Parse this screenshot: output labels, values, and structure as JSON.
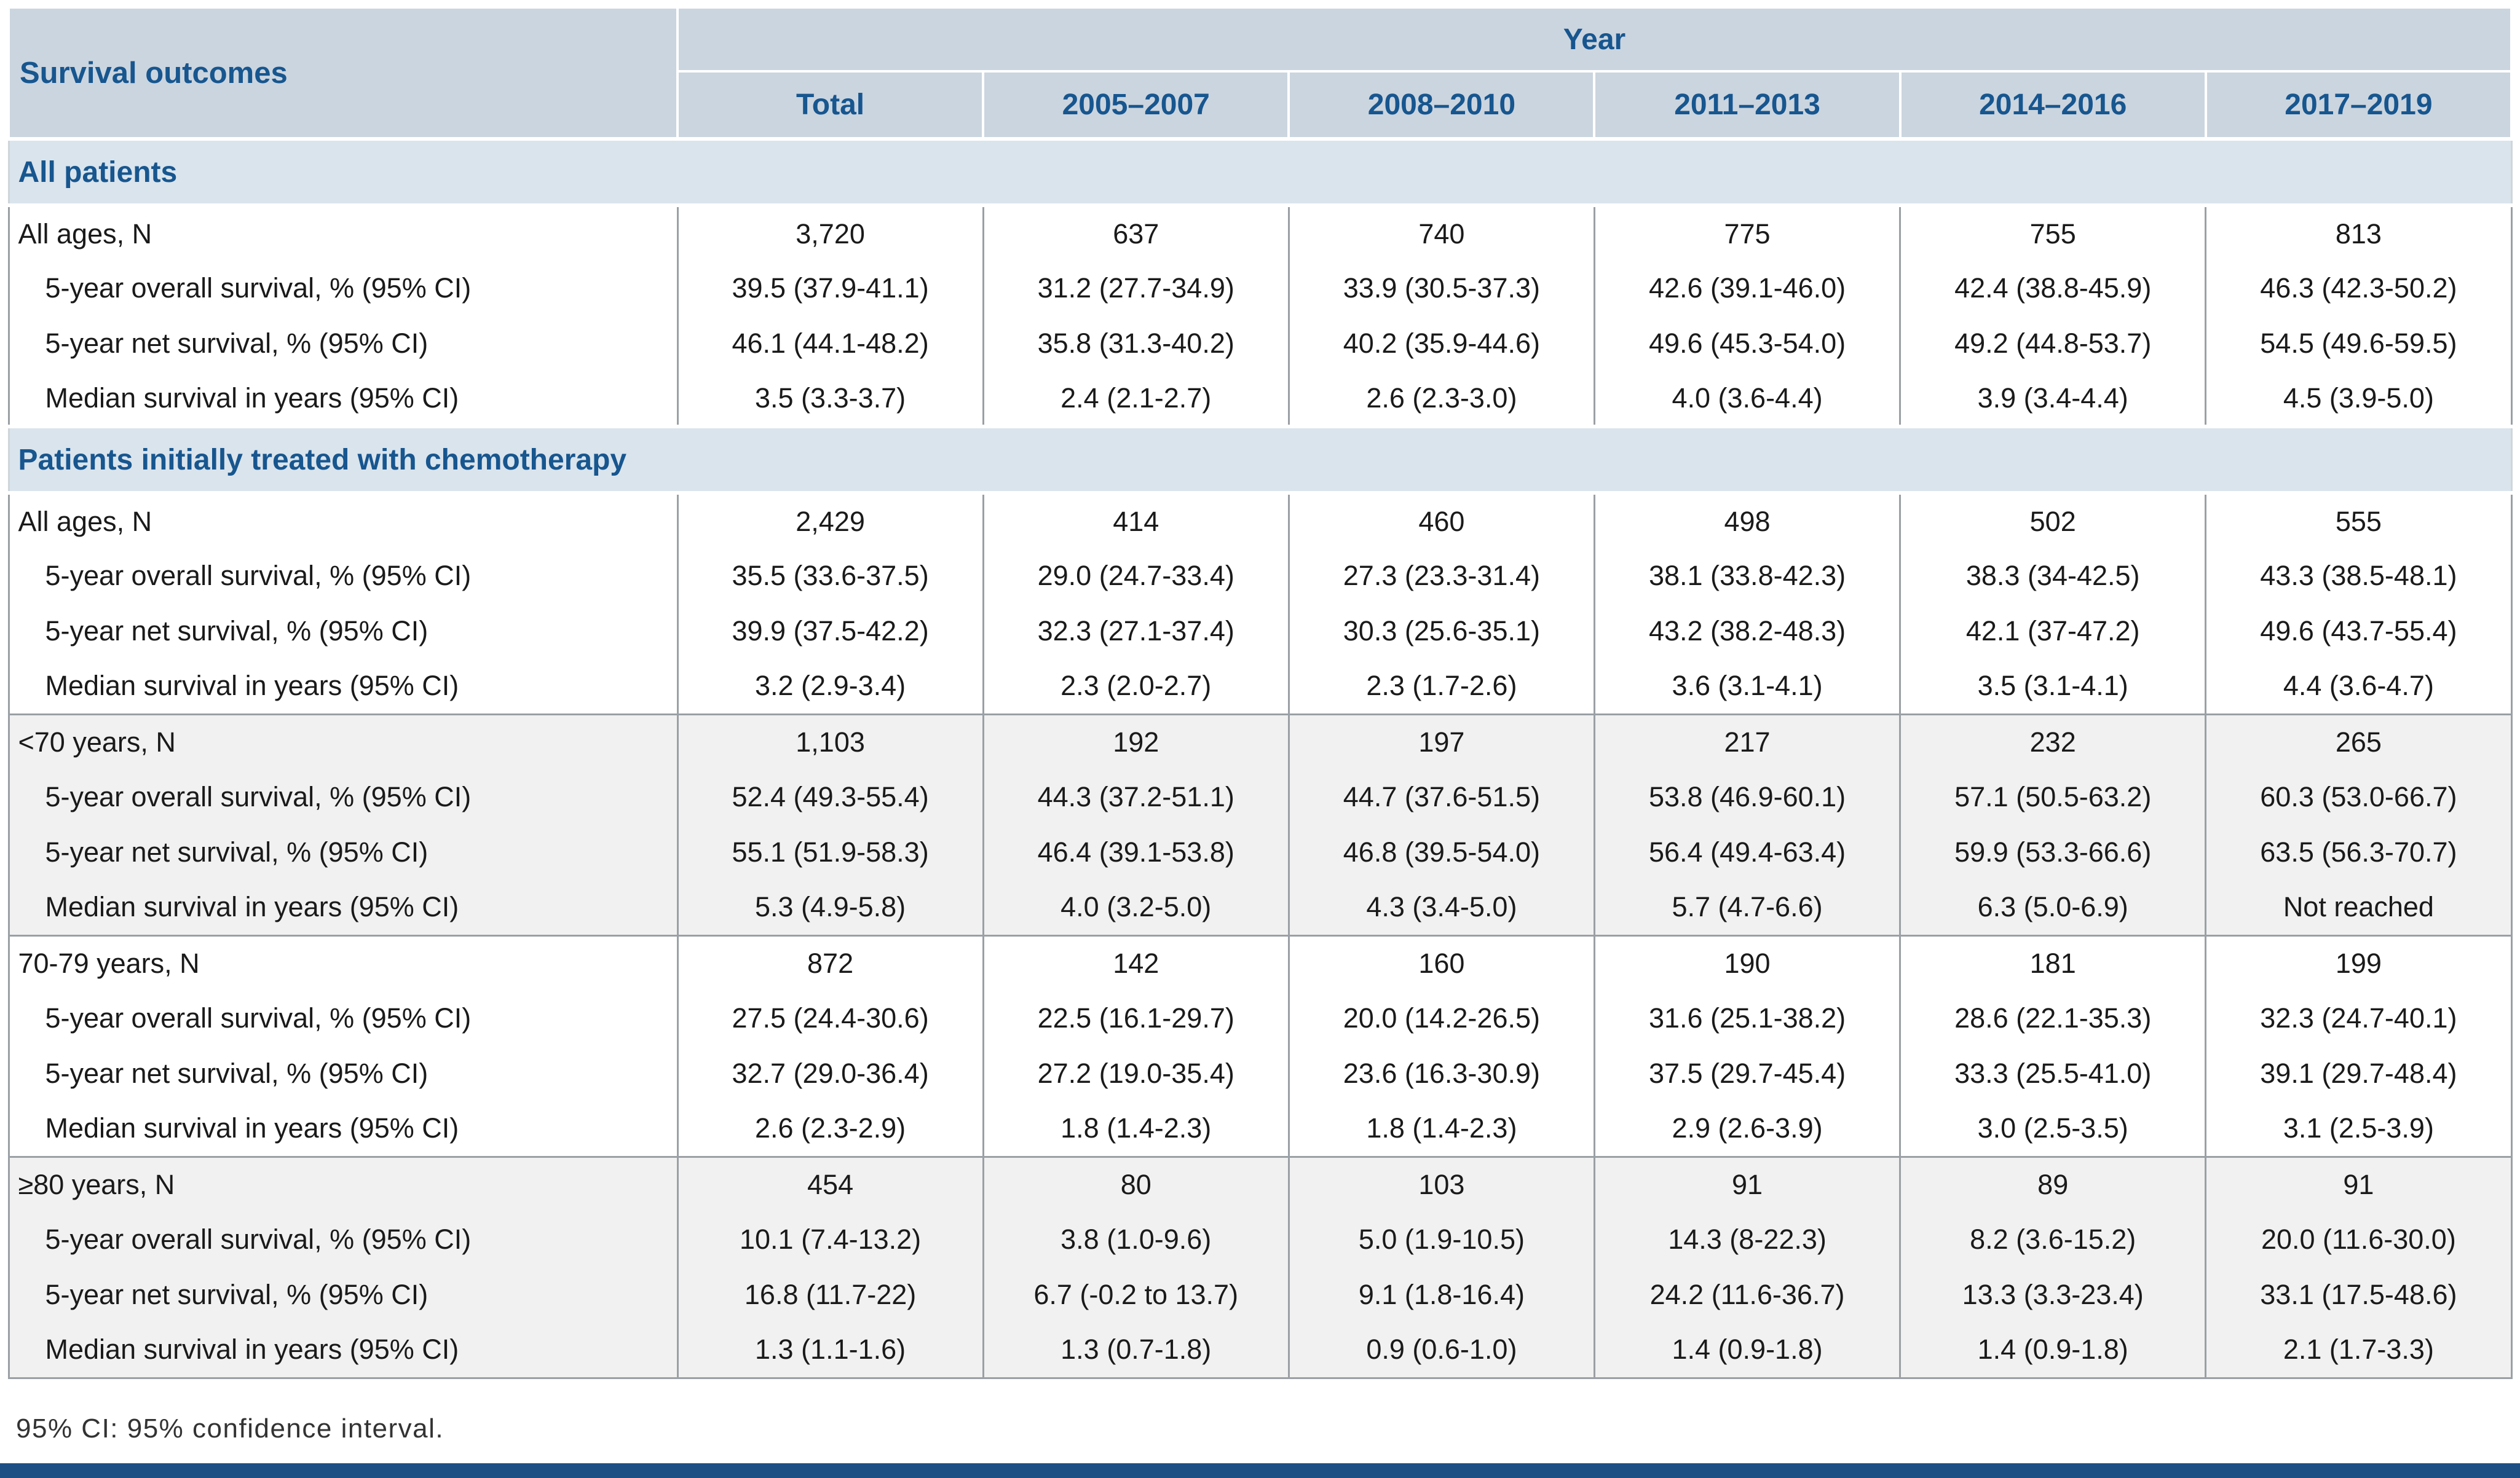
{
  "page": {
    "footnote": "95% CI: 95% confidence interval."
  },
  "colors": {
    "header_bg": "#cbd5df",
    "band_bg": "#dae4ec",
    "shade_bg": "#f1f1f1",
    "header_text": "#17568f",
    "grid": "#9aa0a5",
    "bottom_bar": "#1d4f85",
    "body_text": "#1a1a1a"
  },
  "table": {
    "header": {
      "outcomes": "Survival outcomes",
      "year_group": "Year",
      "columns": [
        "Total",
        "2005–2007",
        "2008–2010",
        "2011–2013",
        "2014–2016",
        "2017–2019"
      ]
    },
    "sections": [
      {
        "title": "All patients",
        "groups": [
          {
            "shade": false,
            "rows": [
              {
                "label": "All ages, N",
                "indent": false,
                "values": [
                  "3,720",
                  "637",
                  "740",
                  "775",
                  "755",
                  "813"
                ]
              },
              {
                "label": "5-year overall survival, % (95% CI)",
                "indent": true,
                "values": [
                  "39.5 (37.9-41.1)",
                  "31.2 (27.7-34.9)",
                  "33.9 (30.5-37.3)",
                  "42.6 (39.1-46.0)",
                  "42.4 (38.8-45.9)",
                  "46.3 (42.3-50.2)"
                ]
              },
              {
                "label": "5-year net survival, % (95% CI)",
                "indent": true,
                "values": [
                  "46.1 (44.1-48.2)",
                  "35.8 (31.3-40.2)",
                  "40.2 (35.9-44.6)",
                  "49.6 (45.3-54.0)",
                  "49.2 (44.8-53.7)",
                  "54.5 (49.6-59.5)"
                ]
              },
              {
                "label": "Median survival in years (95% CI)",
                "indent": true,
                "values": [
                  "3.5 (3.3-3.7)",
                  "2.4 (2.1-2.7)",
                  "2.6 (2.3-3.0)",
                  "4.0 (3.6-4.4)",
                  "3.9 (3.4-4.4)",
                  "4.5 (3.9-5.0)"
                ]
              }
            ]
          }
        ]
      },
      {
        "title": "Patients initially treated with chemotherapy",
        "groups": [
          {
            "shade": false,
            "rows": [
              {
                "label": "All ages, N",
                "indent": false,
                "values": [
                  "2,429",
                  "414",
                  "460",
                  "498",
                  "502",
                  "555"
                ]
              },
              {
                "label": "5-year overall survival, % (95% CI)",
                "indent": true,
                "values": [
                  "35.5 (33.6-37.5)",
                  "29.0 (24.7-33.4)",
                  "27.3 (23.3-31.4)",
                  "38.1 (33.8-42.3)",
                  "38.3 (34-42.5)",
                  "43.3 (38.5-48.1)"
                ]
              },
              {
                "label": "5-year net survival, % (95% CI)",
                "indent": true,
                "values": [
                  "39.9 (37.5-42.2)",
                  "32.3 (27.1-37.4)",
                  "30.3 (25.6-35.1)",
                  "43.2 (38.2-48.3)",
                  "42.1 (37-47.2)",
                  "49.6 (43.7-55.4)"
                ]
              },
              {
                "label": "Median survival in years (95% CI)",
                "indent": true,
                "values": [
                  "3.2 (2.9-3.4)",
                  "2.3 (2.0-2.7)",
                  "2.3 (1.7-2.6)",
                  "3.6 (3.1-4.1)",
                  "3.5 (3.1-4.1)",
                  "4.4 (3.6-4.7)"
                ]
              }
            ]
          },
          {
            "shade": true,
            "rows": [
              {
                "label": "<70 years, N",
                "indent": false,
                "values": [
                  "1,103",
                  "192",
                  "197",
                  "217",
                  "232",
                  "265"
                ]
              },
              {
                "label": "5-year overall survival, % (95% CI)",
                "indent": true,
                "values": [
                  "52.4 (49.3-55.4)",
                  "44.3 (37.2-51.1)",
                  "44.7 (37.6-51.5)",
                  "53.8 (46.9-60.1)",
                  "57.1 (50.5-63.2)",
                  "60.3 (53.0-66.7)"
                ]
              },
              {
                "label": "5-year net survival, % (95% CI)",
                "indent": true,
                "values": [
                  "55.1 (51.9-58.3)",
                  "46.4 (39.1-53.8)",
                  "46.8 (39.5-54.0)",
                  "56.4 (49.4-63.4)",
                  "59.9 (53.3-66.6)",
                  "63.5 (56.3-70.7)"
                ]
              },
              {
                "label": "Median survival in years (95% CI)",
                "indent": true,
                "values": [
                  "5.3 (4.9-5.8)",
                  "4.0 (3.2-5.0)",
                  "4.3 (3.4-5.0)",
                  "5.7 (4.7-6.6)",
                  "6.3 (5.0-6.9)",
                  "Not reached"
                ]
              }
            ]
          },
          {
            "shade": false,
            "rows": [
              {
                "label": "70-79 years, N",
                "indent": false,
                "values": [
                  "872",
                  "142",
                  "160",
                  "190",
                  "181",
                  "199"
                ]
              },
              {
                "label": "5-year overall survival, % (95% CI)",
                "indent": true,
                "values": [
                  "27.5 (24.4-30.6)",
                  "22.5 (16.1-29.7)",
                  "20.0 (14.2-26.5)",
                  "31.6 (25.1-38.2)",
                  "28.6 (22.1-35.3)",
                  "32.3 (24.7-40.1)"
                ]
              },
              {
                "label": "5-year net survival, % (95% CI)",
                "indent": true,
                "values": [
                  "32.7 (29.0-36.4)",
                  "27.2 (19.0-35.4)",
                  "23.6 (16.3-30.9)",
                  "37.5 (29.7-45.4)",
                  "33.3 (25.5-41.0)",
                  "39.1 (29.7-48.4)"
                ]
              },
              {
                "label": "Median survival in years (95% CI)",
                "indent": true,
                "values": [
                  "2.6 (2.3-2.9)",
                  "1.8 (1.4-2.3)",
                  "1.8 (1.4-2.3)",
                  "2.9 (2.6-3.9)",
                  "3.0 (2.5-3.5)",
                  "3.1 (2.5-3.9)"
                ]
              }
            ]
          },
          {
            "shade": true,
            "rows": [
              {
                "label": "≥80 years, N",
                "indent": false,
                "values": [
                  "454",
                  "80",
                  "103",
                  "91",
                  "89",
                  "91"
                ]
              },
              {
                "label": "5-year overall survival, % (95% CI)",
                "indent": true,
                "values": [
                  "10.1 (7.4-13.2)",
                  "3.8 (1.0-9.6)",
                  "5.0 (1.9-10.5)",
                  "14.3 (8-22.3)",
                  "8.2 (3.6-15.2)",
                  "20.0 (11.6-30.0)"
                ]
              },
              {
                "label": "5-year net survival, % (95% CI)",
                "indent": true,
                "values": [
                  "16.8 (11.7-22)",
                  "6.7 (-0.2 to 13.7)",
                  "9.1 (1.8-16.4)",
                  "24.2 (11.6-36.7)",
                  "13.3 (3.3-23.4)",
                  "33.1 (17.5-48.6)"
                ]
              },
              {
                "label": "Median survival in years (95% CI)",
                "indent": true,
                "values": [
                  "1.3 (1.1-1.6)",
                  "1.3 (0.7-1.8)",
                  "0.9 (0.6-1.0)",
                  "1.4 (0.9-1.8)",
                  "1.4 (0.9-1.8)",
                  "2.1 (1.7-3.3)"
                ]
              }
            ]
          }
        ]
      }
    ]
  }
}
